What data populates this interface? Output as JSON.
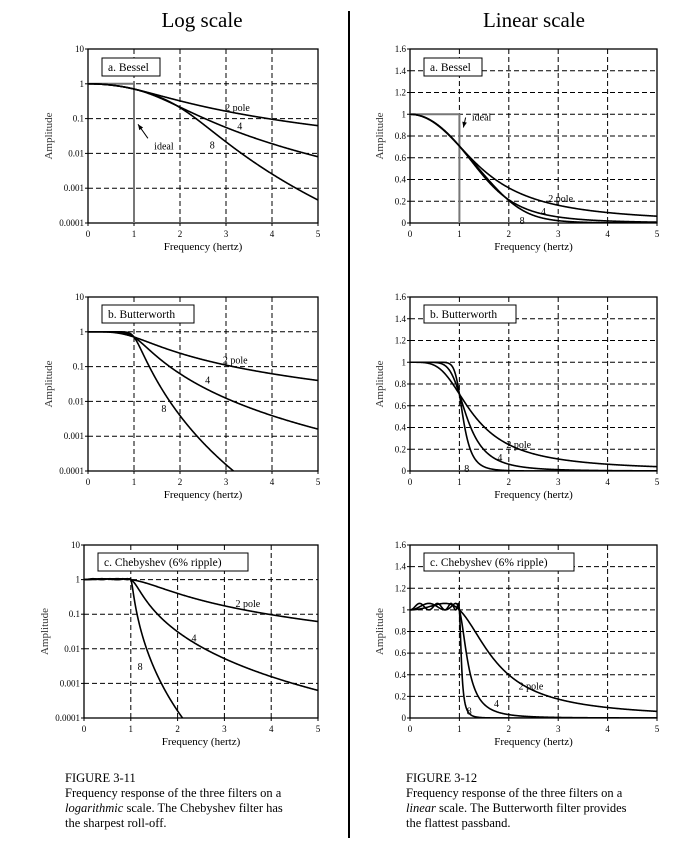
{
  "columns": {
    "left_title": "Log scale",
    "right_title": "Linear scale"
  },
  "captions": {
    "left": {
      "figure": "FIGURE 3-11",
      "line1": "Frequency response of the three filters on a",
      "italic": "logarithmic",
      "line2_rest": " scale. The Chebyshev filter has",
      "line3": "the sharpest roll-off."
    },
    "right": {
      "figure": "FIGURE 3-12",
      "line1": "Frequency response of the three filters on a",
      "italic": "linear",
      "line2_rest": " scale. The Butterworth filter provides",
      "line3": "the flattest passband."
    }
  },
  "chart_data": [
    {
      "id": "log-bessel",
      "type": "line",
      "scale": "log",
      "title": "a.  Bessel",
      "xlabel": "Frequency (hertz)",
      "ylabel": "Amplitude",
      "xlim": [
        0,
        5
      ],
      "ylim": [
        0.0001,
        10
      ],
      "xticks": [
        "0",
        "1",
        "2",
        "3",
        "4",
        "5"
      ],
      "yticks": [
        "0.0001",
        "0.001",
        "0.01",
        "0.1",
        "1",
        "10"
      ],
      "filter": "bessel",
      "orders": [
        2,
        4,
        8
      ],
      "cutoff_hz": 1,
      "show_ideal": true,
      "labels": [
        {
          "text": "2 pole",
          "x": 3.25,
          "y": 0.2
        },
        {
          "text": "4",
          "x": 3.3,
          "y": 0.06
        },
        {
          "text": "8",
          "x": 2.7,
          "y": 0.017
        },
        {
          "text": "ideal",
          "x": 1.65,
          "y": 0.016
        }
      ]
    },
    {
      "id": "log-butterworth",
      "type": "line",
      "scale": "log",
      "title": "b.  Butterworth",
      "xlabel": "Frequency (hertz)",
      "ylabel": "Amplitude",
      "xlim": [
        0,
        5
      ],
      "ylim": [
        0.0001,
        10
      ],
      "xticks": [
        "0",
        "1",
        "2",
        "3",
        "4",
        "5"
      ],
      "yticks": [
        "0.0001",
        "0.001",
        "0.01",
        "0.1",
        "1",
        "10"
      ],
      "filter": "butterworth",
      "orders": [
        2,
        4,
        8
      ],
      "cutoff_hz": 1,
      "show_ideal": false,
      "labels": [
        {
          "text": "2 pole",
          "x": 3.2,
          "y": 0.15
        },
        {
          "text": "4",
          "x": 2.6,
          "y": 0.04
        },
        {
          "text": "8",
          "x": 1.65,
          "y": 0.006
        }
      ]
    },
    {
      "id": "log-chebyshev",
      "type": "line",
      "scale": "log",
      "title": "c.  Chebyshev (6% ripple)",
      "xlabel": "Frequency (hertz)",
      "ylabel": "Amplitude",
      "xlim": [
        0,
        5
      ],
      "ylim": [
        0.0001,
        10
      ],
      "xticks": [
        "0",
        "1",
        "2",
        "3",
        "4",
        "5"
      ],
      "yticks": [
        "0.0001",
        "0.001",
        "0.01",
        "0.1",
        "1",
        "10"
      ],
      "filter": "chebyshev",
      "ripple": 0.06,
      "orders": [
        2,
        4,
        8
      ],
      "cutoff_hz": 1,
      "show_ideal": false,
      "labels": [
        {
          "text": "2 pole",
          "x": 3.5,
          "y": 0.2
        },
        {
          "text": "4",
          "x": 2.35,
          "y": 0.02
        },
        {
          "text": "8",
          "x": 1.2,
          "y": 0.003
        }
      ]
    },
    {
      "id": "lin-bessel",
      "type": "line",
      "scale": "linear",
      "title": "a.  Bessel",
      "xlabel": "Frequency (hertz)",
      "ylabel": "Amplitude",
      "xlim": [
        0,
        5
      ],
      "ylim": [
        0,
        1.6
      ],
      "xticks": [
        "0",
        "1",
        "2",
        "3",
        "4",
        "5"
      ],
      "yticks": [
        "0",
        "0.2",
        "0.4",
        "0.6",
        "0.8",
        "1",
        "1.2",
        "1.4",
        "1.6"
      ],
      "filter": "bessel",
      "orders": [
        2,
        4,
        8
      ],
      "cutoff_hz": 1,
      "show_ideal": true,
      "labels": [
        {
          "text": "2 pole",
          "x": 3.05,
          "y": 0.22
        },
        {
          "text": "4",
          "x": 2.7,
          "y": 0.1
        },
        {
          "text": "8",
          "x": 2.27,
          "y": 0.02
        },
        {
          "text": "ideal",
          "x": 1.45,
          "y": 0.97
        }
      ]
    },
    {
      "id": "lin-butterworth",
      "type": "line",
      "scale": "linear",
      "title": "b.  Butterworth",
      "xlabel": "Frequency (hertz)",
      "ylabel": "Amplitude",
      "xlim": [
        0,
        5
      ],
      "ylim": [
        0,
        1.6
      ],
      "xticks": [
        "0",
        "1",
        "2",
        "3",
        "4",
        "5"
      ],
      "yticks": [
        "0",
        "0.2",
        "0.4",
        "0.6",
        "0.8",
        "1",
        "1.2",
        "1.4",
        "1.6"
      ],
      "filter": "butterworth",
      "orders": [
        2,
        4,
        8
      ],
      "cutoff_hz": 1,
      "show_ideal": false,
      "labels": [
        {
          "text": "2 pole",
          "x": 2.2,
          "y": 0.24
        },
        {
          "text": "4",
          "x": 1.82,
          "y": 0.12
        },
        {
          "text": "8",
          "x": 1.15,
          "y": 0.02
        }
      ]
    },
    {
      "id": "lin-chebyshev",
      "type": "line",
      "scale": "linear",
      "title": "c.  Chebyshev (6% ripple)",
      "xlabel": "Frequency (hertz)",
      "ylabel": "Amplitude",
      "xlim": [
        0,
        5
      ],
      "ylim": [
        0,
        1.6
      ],
      "xticks": [
        "0",
        "1",
        "2",
        "3",
        "4",
        "5"
      ],
      "yticks": [
        "0",
        "0.2",
        "0.4",
        "0.6",
        "0.8",
        "1",
        "1.2",
        "1.4",
        "1.6"
      ],
      "filter": "chebyshev",
      "ripple": 0.06,
      "orders": [
        2,
        4,
        8
      ],
      "cutoff_hz": 1,
      "show_ideal": false,
      "labels": [
        {
          "text": "2 pole",
          "x": 2.45,
          "y": 0.29
        },
        {
          "text": "4",
          "x": 1.75,
          "y": 0.13
        },
        {
          "text": "8",
          "x": 1.2,
          "y": 0.06
        }
      ]
    }
  ]
}
